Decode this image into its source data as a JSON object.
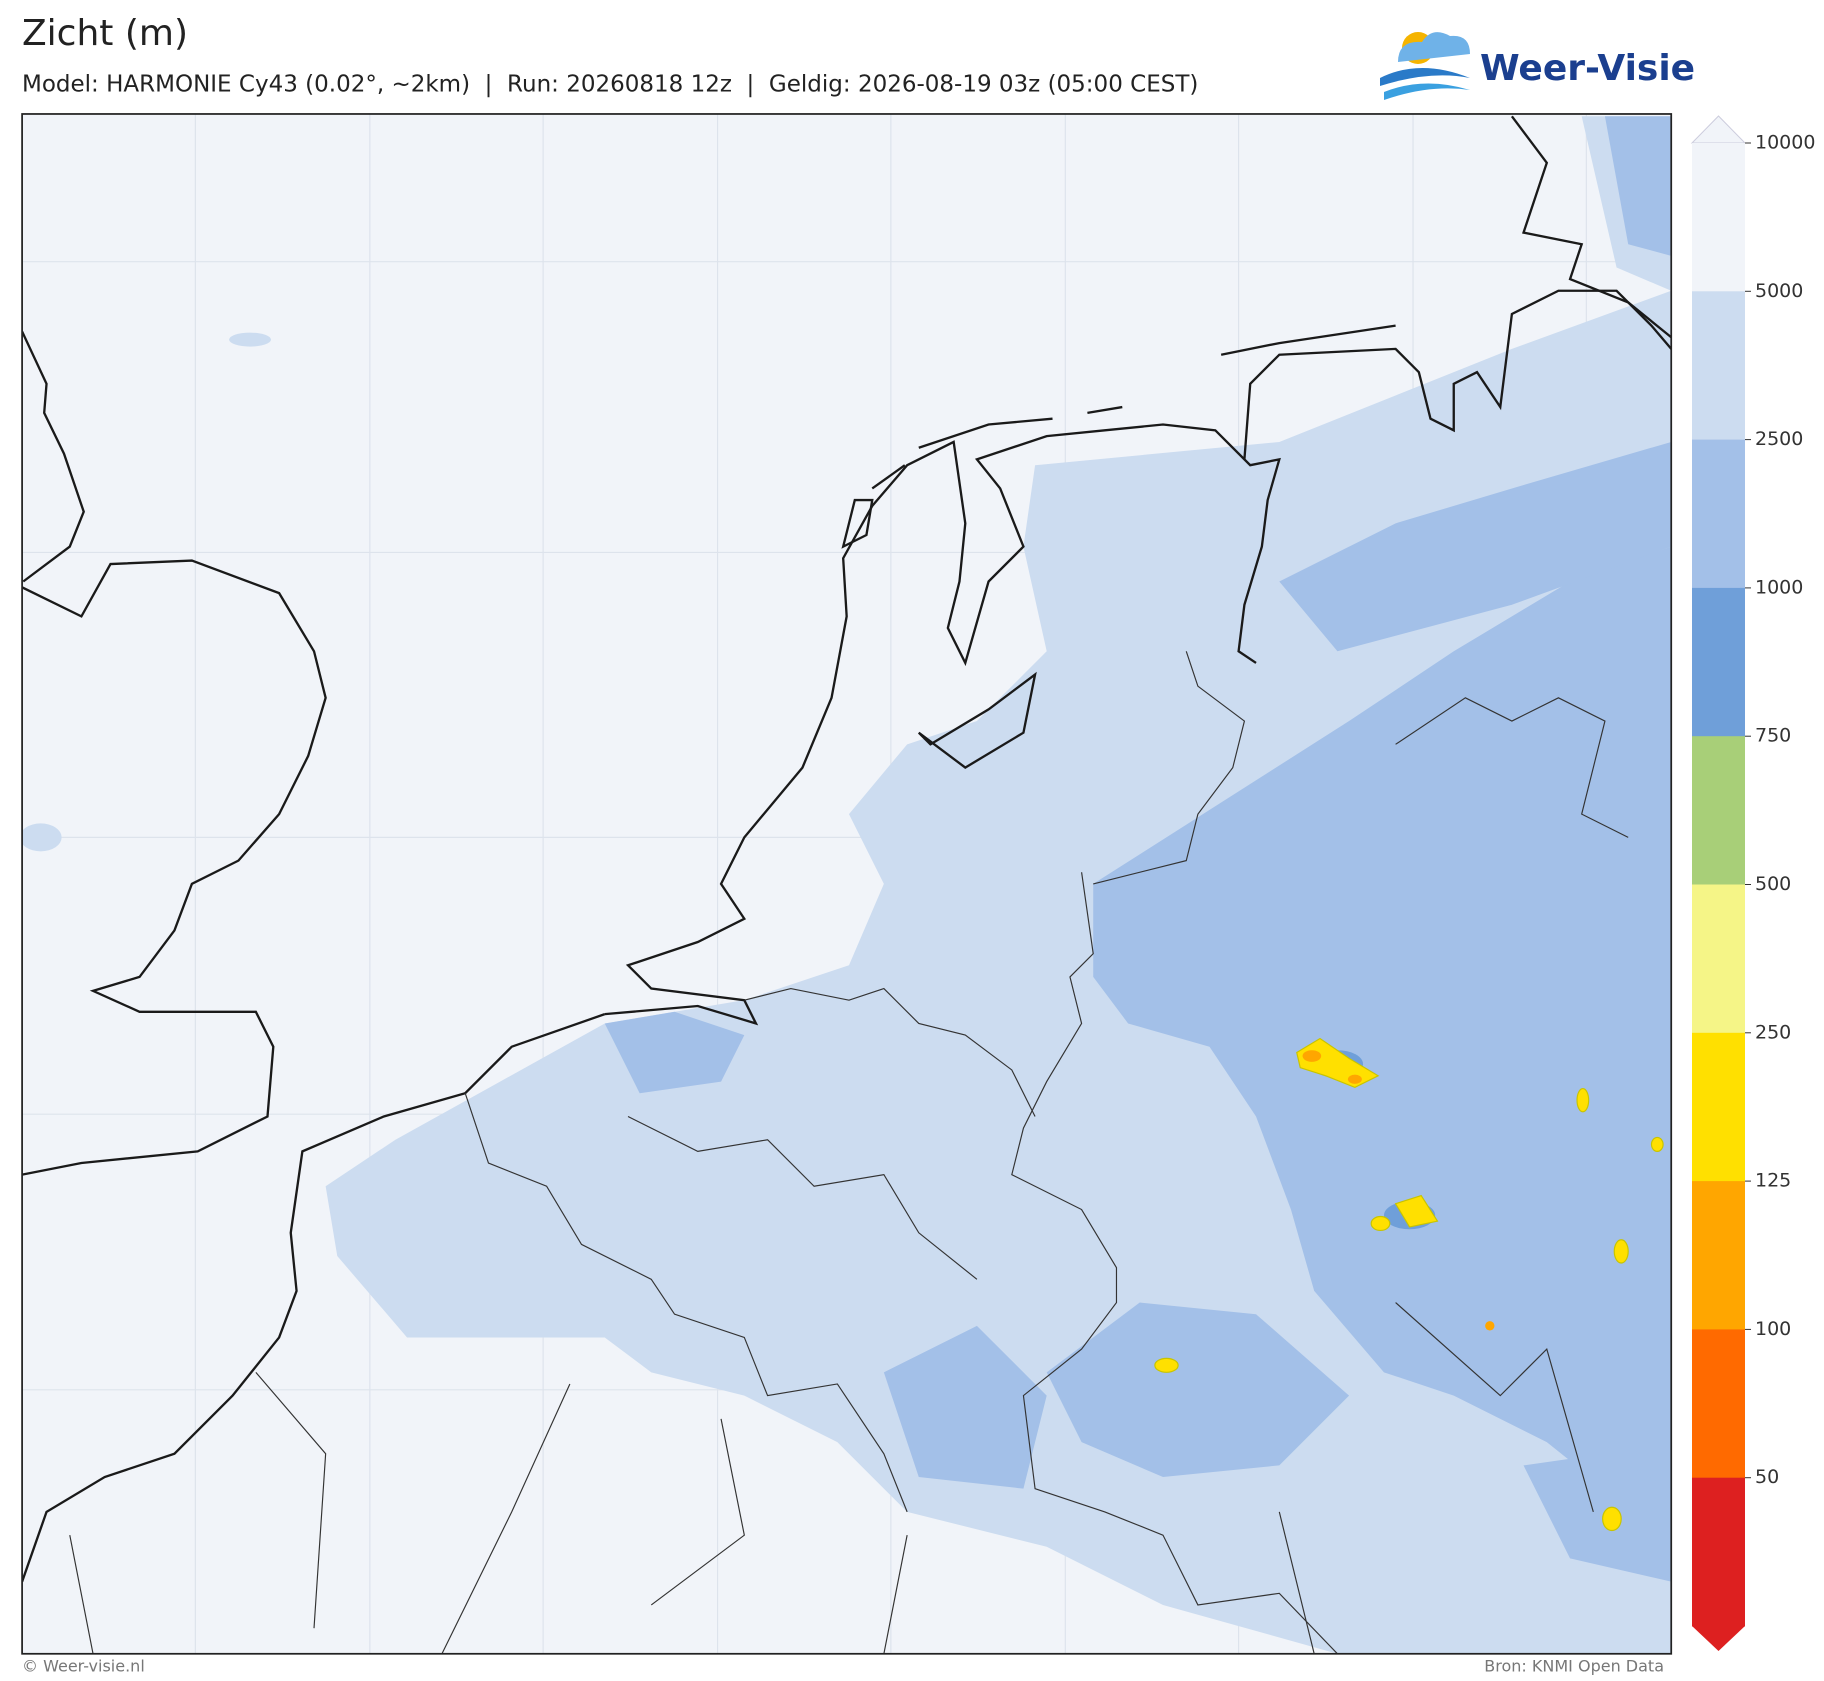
{
  "header": {
    "title": "Zicht (m)",
    "subtitle": "Model: HARMONIE Cy43 (0.02°, ~2km)  |  Run: 20260818 12z  |  Geldig: 2026-08-19 03z (05:00 CEST)"
  },
  "logo": {
    "text": "Weer-Visie"
  },
  "colorbar": {
    "levels": [
      10000,
      5000,
      2500,
      1000,
      750,
      500,
      250,
      125,
      100,
      50
    ],
    "colors": [
      "#f1f4f9",
      "#ccdcf0",
      "#a3c0e8",
      "#6f9fd9",
      "#a8cf78",
      "#f5f587",
      "#ffe000",
      "#ffa600",
      "#ff6a00",
      "#dd2020"
    ]
  },
  "footer": {
    "left": "© Weer-visie.nl",
    "right": "Bron: KNMI Open Data"
  }
}
